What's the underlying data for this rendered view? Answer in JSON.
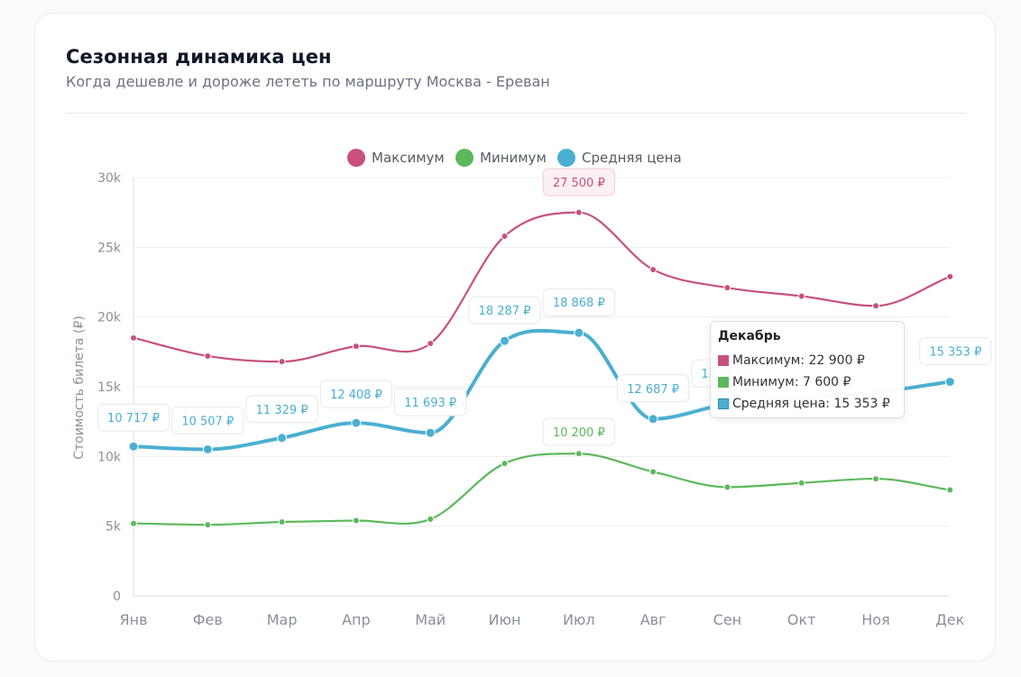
{
  "header": {
    "title": "Сезонная динамика цен",
    "subtitle": "Когда дешевле и дороже лететь по маршруту Москва - Ереван"
  },
  "colors": {
    "max": "#c8507e",
    "min": "#5cb85c",
    "avg": "#4bafd1",
    "grid": "#eceef1",
    "axis_text": "#8a9099"
  },
  "chart_data": {
    "type": "line",
    "categories": [
      "Янв",
      "Фев",
      "Мар",
      "Апр",
      "Май",
      "Июн",
      "Июл",
      "Авг",
      "Сен",
      "Окт",
      "Ноя",
      "Дек"
    ],
    "series": [
      {
        "name": "Максимум",
        "color": "#c8507e",
        "values": [
          18500,
          17200,
          16800,
          17900,
          18100,
          25800,
          27500,
          23400,
          22100,
          21500,
          20800,
          22900
        ],
        "labels": {
          "6": "27 500 ₽"
        }
      },
      {
        "name": "Минимум",
        "color": "#5cb85c",
        "values": [
          5200,
          5100,
          5300,
          5400,
          5500,
          9500,
          10200,
          8900,
          7800,
          8100,
          8400,
          7600
        ],
        "labels": {
          "6": "10 200 ₽"
        }
      },
      {
        "name": "Средняя цена",
        "color": "#4bafd1",
        "values": [
          10717,
          10507,
          11329,
          12408,
          11693,
          18287,
          18868,
          12687,
          13766,
          14200,
          14600,
          15353
        ],
        "labels": {
          "0": "10 717 ₽",
          "1": "10 507 ₽",
          "2": "11 329 ₽",
          "3": "12 408 ₽",
          "4": "11 693 ₽",
          "5": "18 287 ₽",
          "6": "18 868 ₽",
          "7": "12 687 ₽",
          "8": "13 766 ₽",
          "11": "15 353 ₽"
        }
      }
    ],
    "ylabel": "Стоимость билета (₽)",
    "ylim": [
      0,
      30000
    ],
    "yticks": [
      0,
      5000,
      10000,
      15000,
      20000,
      25000,
      30000
    ],
    "ytick_labels": [
      "0",
      "5k",
      "10k",
      "15k",
      "20k",
      "25k",
      "30k"
    ],
    "legend": "top-center",
    "grid": true
  },
  "tooltip": {
    "title": "Декабрь",
    "rows": [
      {
        "label": "Максимум: 22 900 ₽",
        "color": "#c8507e"
      },
      {
        "label": "Минимум: 7 600 ₽",
        "color": "#5cb85c"
      },
      {
        "label": "Средняя цена: 15 353 ₽",
        "color": "#4bafd1"
      }
    ]
  }
}
